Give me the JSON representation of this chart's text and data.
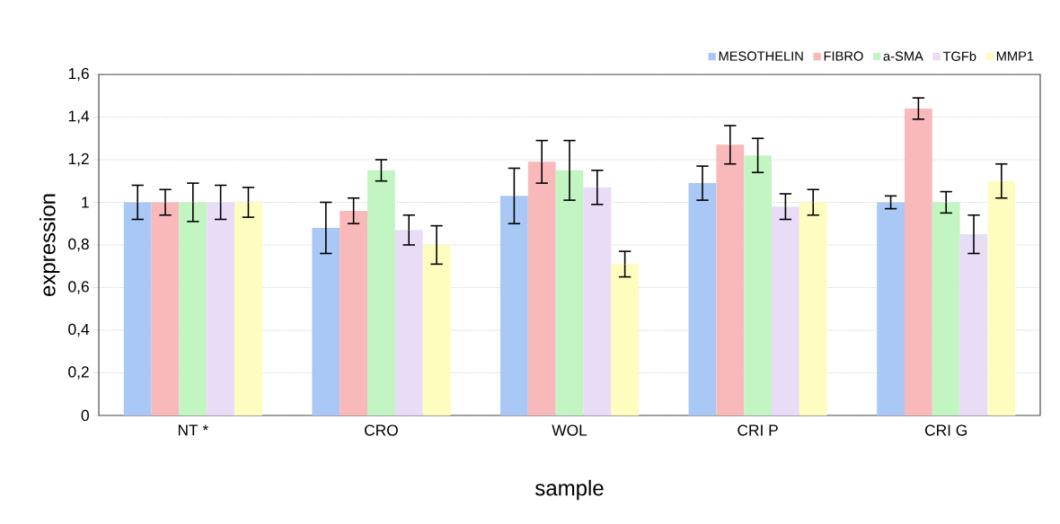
{
  "chart_data": {
    "type": "bar",
    "xlabel": "sample",
    "ylabel": "expression",
    "categories": [
      "NT *",
      "CRO",
      "WOL",
      "CRI P",
      "CRI G"
    ],
    "series": [
      {
        "name": "MESOTHELIN",
        "color": "#a9c8f5",
        "values": [
          1.0,
          0.88,
          1.03,
          1.09,
          1.0
        ],
        "errors": [
          0.08,
          0.12,
          0.13,
          0.08,
          0.03
        ]
      },
      {
        "name": "FIBRO",
        "color": "#f9b9bb",
        "values": [
          1.0,
          0.96,
          1.19,
          1.27,
          1.44
        ],
        "errors": [
          0.06,
          0.06,
          0.1,
          0.09,
          0.05
        ]
      },
      {
        "name": "a-SMA",
        "color": "#c2f5c2",
        "values": [
          1.0,
          1.15,
          1.15,
          1.22,
          1.0
        ],
        "errors": [
          0.09,
          0.05,
          0.14,
          0.08,
          0.05
        ]
      },
      {
        "name": "TGFb",
        "color": "#e9dcf7",
        "values": [
          1.0,
          0.87,
          1.07,
          0.98,
          0.85
        ],
        "errors": [
          0.08,
          0.07,
          0.08,
          0.06,
          0.09
        ]
      },
      {
        "name": "MMP1",
        "color": "#fdfdc0",
        "values": [
          1.0,
          0.8,
          0.71,
          1.0,
          1.1
        ],
        "errors": [
          0.07,
          0.09,
          0.06,
          0.06,
          0.08
        ]
      }
    ],
    "ylim": [
      0,
      1.6
    ],
    "yticks": [
      0,
      {
        "value": 0.2,
        "label": "0,2"
      },
      {
        "value": 0.4,
        "label": "0,4"
      },
      {
        "value": 0.6,
        "label": "0,6"
      },
      {
        "value": 0.8,
        "label": "0,8"
      },
      1,
      {
        "value": 1.2,
        "label": "1,2"
      },
      {
        "value": 1.4,
        "label": "1,4"
      },
      {
        "value": 1.6,
        "label": "1,6"
      }
    ],
    "grid": "y",
    "legend": "top right"
  }
}
